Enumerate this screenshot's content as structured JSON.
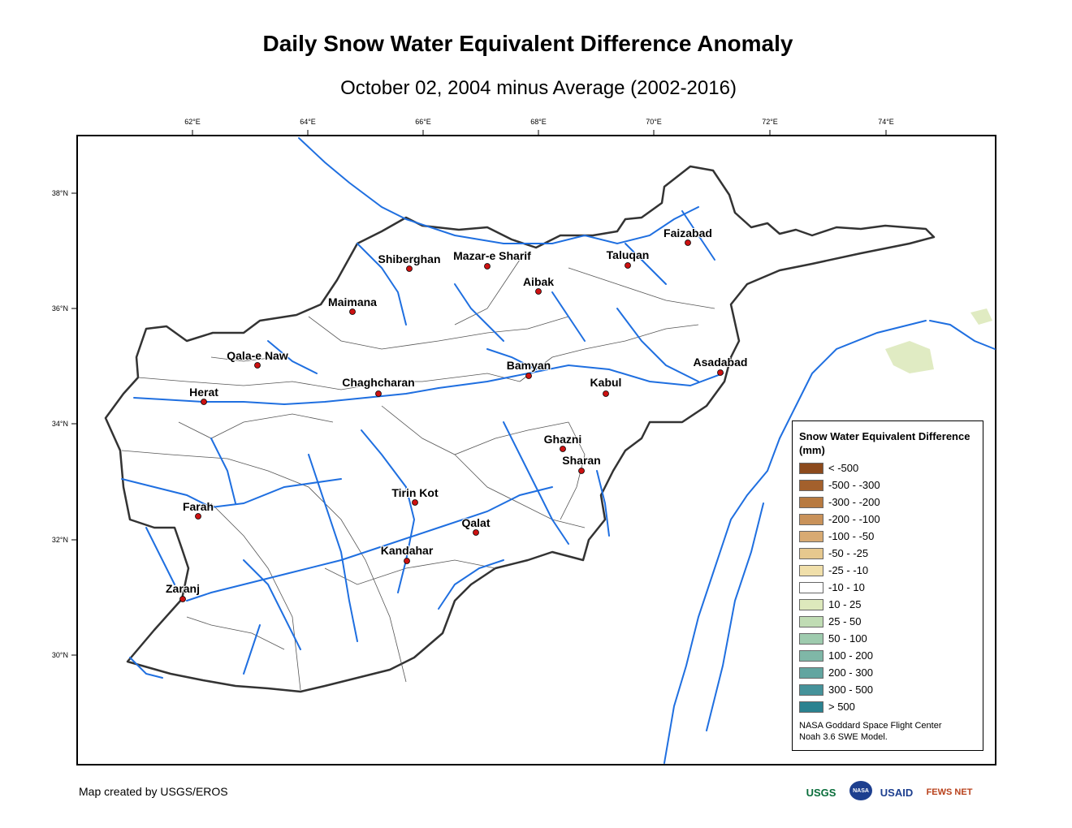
{
  "title": "Daily Snow Water Equivalent Difference Anomaly",
  "subtitle": "October 02, 2004 minus Average (2002-2016)",
  "axes": {
    "lon_ticks": [
      "62°E",
      "64°E",
      "66°E",
      "68°E",
      "70°E",
      "72°E",
      "74°E"
    ],
    "lat_ticks": [
      "38°N",
      "36°N",
      "34°N",
      "32°N",
      "30°N"
    ]
  },
  "cities": [
    {
      "name": "Faizabad"
    },
    {
      "name": "Taluqan"
    },
    {
      "name": "Shiberghan"
    },
    {
      "name": "Mazar-e Sharif"
    },
    {
      "name": "Aibak"
    },
    {
      "name": "Maimana"
    },
    {
      "name": "Qala-e Naw"
    },
    {
      "name": "Herat"
    },
    {
      "name": "Chaghcharan"
    },
    {
      "name": "Bamyan"
    },
    {
      "name": "Kabul"
    },
    {
      "name": "Asadabad"
    },
    {
      "name": "Ghazni"
    },
    {
      "name": "Sharan"
    },
    {
      "name": "Tirin Kot"
    },
    {
      "name": "Farah"
    },
    {
      "name": "Qalat"
    },
    {
      "name": "Kandahar"
    },
    {
      "name": "Zaranj"
    }
  ],
  "legend": {
    "title": "Snow Water Equivalent Difference (mm)",
    "items": [
      {
        "label": "< -500",
        "color": "#8c4a1c"
      },
      {
        "label": "-500 - -300",
        "color": "#a3602c"
      },
      {
        "label": "-300 - -200",
        "color": "#b87a40"
      },
      {
        "label": "-200 - -100",
        "color": "#c9925a"
      },
      {
        "label": "-100 - -50",
        "color": "#d8aa72"
      },
      {
        "label": "-50 - -25",
        "color": "#e6c88e"
      },
      {
        "label": "-25 - -10",
        "color": "#f0dfaa"
      },
      {
        "label": "-10 - 10",
        "color": "#ffffff"
      },
      {
        "label": "10 - 25",
        "color": "#dde9bc"
      },
      {
        "label": "25 - 50",
        "color": "#c0dcb4"
      },
      {
        "label": "50 - 100",
        "color": "#9ecbae"
      },
      {
        "label": "100 - 200",
        "color": "#7fb7a7"
      },
      {
        "label": "200 - 300",
        "color": "#62a5a0"
      },
      {
        "label": "300 - 500",
        "color": "#45929a"
      },
      {
        "label": "> 500",
        "color": "#2a8290"
      }
    ],
    "credit_line1": "NASA Goddard Space Flight Center",
    "credit_line2": "Noah 3.6 SWE Model."
  },
  "footer": {
    "credit": "Map created by USGS/EROS",
    "logos": [
      "USGS",
      "NASA",
      "USAID",
      "FEWS NET"
    ]
  },
  "colors": {
    "river": "#1f6fe0",
    "border": "#222222",
    "city_marker": "#cc1111"
  }
}
